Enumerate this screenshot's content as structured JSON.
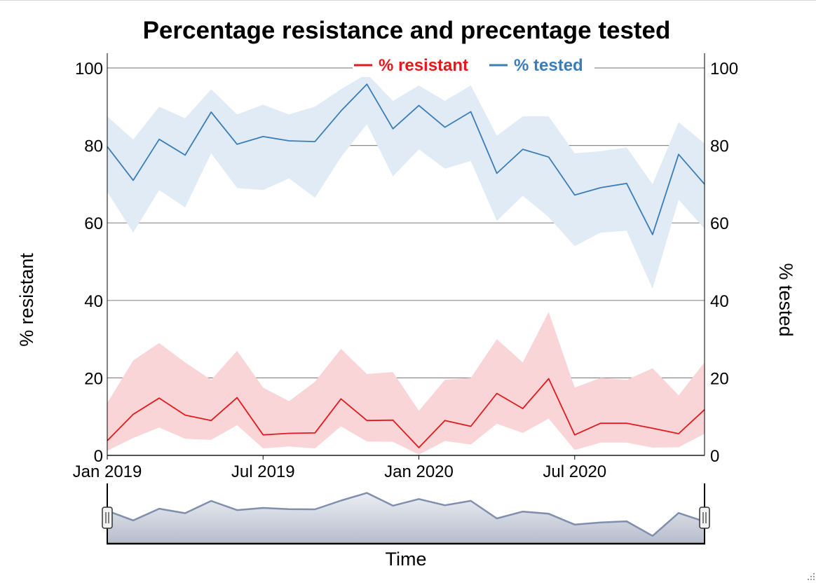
{
  "chart_data": {
    "type": "line",
    "title": "Percentage resistance and precentage tested",
    "xlabel": "Time",
    "ylabel_left": "% resistant",
    "ylabel_right": "% tested",
    "ylim": [
      0,
      100
    ],
    "yticks": [
      "0",
      "20",
      "40",
      "60",
      "80",
      "100"
    ],
    "xlim": [
      "2019-01",
      "2020-12"
    ],
    "xticks": [
      {
        "x": "2019-01",
        "label": "Jan 2019"
      },
      {
        "x": "2019-07",
        "label": "Jul 2019"
      },
      {
        "x": "2020-01",
        "label": "Jan 2020"
      },
      {
        "x": "2020-07",
        "label": "Jul 2020"
      }
    ],
    "grid": true,
    "legend_position": "top-center",
    "x": [
      "2019-01",
      "2019-02",
      "2019-03",
      "2019-04",
      "2019-05",
      "2019-06",
      "2019-07",
      "2019-08",
      "2019-09",
      "2019-10",
      "2019-11",
      "2019-12",
      "2020-01",
      "2020-02",
      "2020-03",
      "2020-04",
      "2020-05",
      "2020-06",
      "2020-07",
      "2020-08",
      "2020-09",
      "2020-10",
      "2020-11",
      "2020-12"
    ],
    "series": [
      {
        "name": "% resistant",
        "color": "#e31a1c",
        "band_color": "#f9d5d8",
        "values": [
          3.8,
          10.6,
          14.8,
          10.4,
          9.0,
          14.9,
          5.3,
          5.7,
          5.8,
          14.6,
          9.0,
          9.1,
          2.0,
          9.0,
          7.5,
          16.0,
          12.1,
          19.8,
          5.3,
          8.3,
          8.3,
          7.0,
          5.6,
          11.8
        ],
        "lower": [
          1.2,
          4.5,
          7.2,
          4.3,
          4.0,
          7.8,
          1.8,
          2.3,
          1.8,
          7.5,
          3.6,
          3.5,
          0.2,
          3.7,
          2.8,
          8.2,
          5.8,
          9.5,
          1.4,
          3.3,
          3.3,
          2.0,
          2.1,
          5.6
        ],
        "upper": [
          13.5,
          24.5,
          29.0,
          24.0,
          19.5,
          27.0,
          17.5,
          14.0,
          19.0,
          27.5,
          21.0,
          21.5,
          11.5,
          19.5,
          20.0,
          30.0,
          24.0,
          37.0,
          17.5,
          20.0,
          19.5,
          22.5,
          15.5,
          24.0
        ]
      },
      {
        "name": "% tested",
        "color": "#3a7db8",
        "band_color": "#e1ebf5",
        "values": [
          79.7,
          71.0,
          81.6,
          77.5,
          88.6,
          80.3,
          82.3,
          81.2,
          81.0,
          88.9,
          95.8,
          84.3,
          90.3,
          84.7,
          88.7,
          72.8,
          79.0,
          77.0,
          67.2,
          69.1,
          70.2,
          57.0,
          77.7,
          70.0
        ],
        "lower": [
          68.0,
          57.5,
          68.5,
          64.0,
          78.0,
          69.0,
          68.5,
          71.5,
          66.5,
          77.0,
          85.5,
          72.0,
          79.0,
          74.0,
          76.0,
          60.5,
          67.0,
          61.5,
          54.0,
          57.5,
          58.0,
          43.0,
          66.0,
          58.5
        ],
        "upper": [
          87.5,
          81.5,
          90.0,
          87.0,
          94.5,
          88.0,
          90.5,
          88.0,
          90.0,
          94.5,
          98.5,
          91.5,
          95.5,
          91.5,
          95.5,
          82.5,
          87.5,
          87.5,
          78.0,
          78.5,
          79.5,
          70.0,
          86.0,
          80.5
        ]
      }
    ],
    "navigator": {
      "color": "#7f8fad",
      "values": [
        79.7,
        71.0,
        81.6,
        77.5,
        88.6,
        80.3,
        82.3,
        81.2,
        81.0,
        88.9,
        95.8,
        84.3,
        90.3,
        84.7,
        88.7,
        72.8,
        79.0,
        77.0,
        67.2,
        69.1,
        70.2,
        57.0,
        77.7,
        70.0
      ]
    }
  }
}
